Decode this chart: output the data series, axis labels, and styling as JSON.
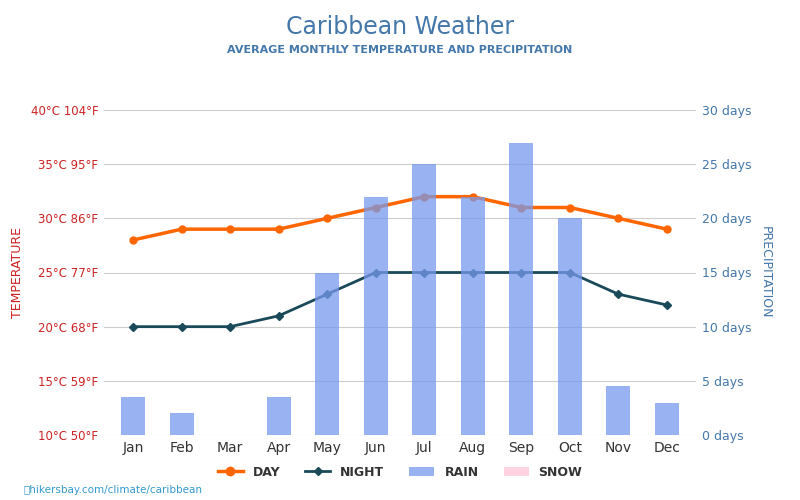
{
  "title": "Caribbean Weather",
  "subtitle": "AVERAGE MONTHLY TEMPERATURE AND PRECIPITATION",
  "months": [
    "Jan",
    "Feb",
    "Mar",
    "Apr",
    "May",
    "Jun",
    "Jul",
    "Aug",
    "Sep",
    "Oct",
    "Nov",
    "Dec"
  ],
  "day_temp": [
    28,
    29,
    29,
    29,
    30,
    31,
    32,
    32,
    31,
    31,
    30,
    29
  ],
  "night_temp": [
    20,
    20,
    20,
    21,
    23,
    25,
    25,
    25,
    25,
    25,
    23,
    22
  ],
  "rain_days": [
    3.5,
    2.0,
    0,
    3.5,
    15,
    22,
    25,
    22,
    27,
    20,
    4.5,
    3.0
  ],
  "snow_days": [
    0,
    0,
    0,
    0,
    0,
    0,
    0,
    0,
    0,
    0,
    0,
    0
  ],
  "temp_ylim": [
    10,
    40
  ],
  "precip_ylim": [
    0,
    30
  ],
  "temp_yticks": [
    10,
    15,
    20,
    25,
    30,
    35,
    40
  ],
  "temp_ytick_labels_c": [
    "10°C",
    "15°C",
    "20°C",
    "25°C",
    "30°C",
    "35°C",
    "40°C"
  ],
  "temp_ytick_labels_f": [
    "50°F",
    "59°F",
    "68°F",
    "77°F",
    "86°F",
    "95°F",
    "104°F"
  ],
  "precip_yticks": [
    0,
    5,
    10,
    15,
    20,
    25,
    30
  ],
  "precip_ytick_labels": [
    "0 days",
    "5 days",
    "10 days",
    "15 days",
    "20 days",
    "25 days",
    "30 days"
  ],
  "bar_color": "#7799ee",
  "snow_color": "#ffccdd",
  "day_color": "#ff6600",
  "night_color": "#1a4a5a",
  "background_color": "#ffffff",
  "grid_color": "#cccccc",
  "title_color": "#4477aa",
  "subtitle_color": "#4477aa",
  "left_temp_label_color": "#cc2222",
  "right_precip_label_color": "#4477aa",
  "left_temp_ylabel": "TEMPERATURE",
  "right_precip_ylabel": "PRECIPITATION",
  "watermark": "hikersbay.com/climate/caribbean",
  "legend_day": "DAY",
  "legend_night": "NIGHT",
  "legend_rain": "RAIN",
  "legend_snow": "SNOW"
}
